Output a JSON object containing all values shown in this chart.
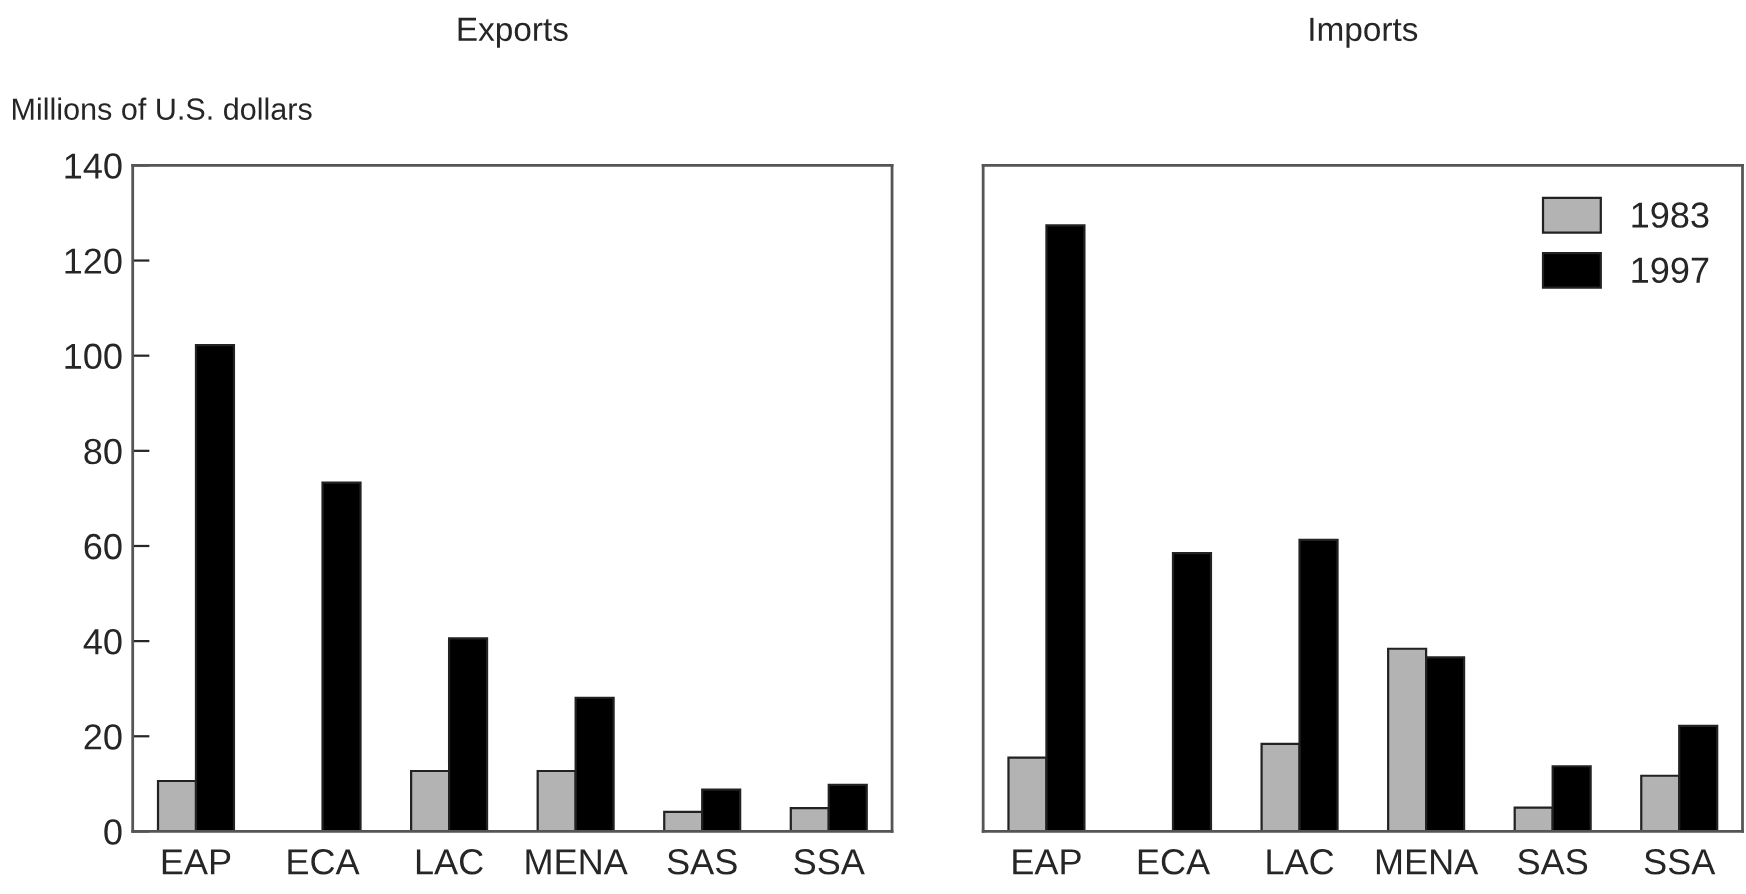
{
  "chart_data": [
    {
      "type": "bar",
      "title": "Exports",
      "ylabel": "Millions of U.S. dollars",
      "categories": [
        "EAP",
        "ECA",
        "LAC",
        "MENA",
        "SAS",
        "SSA"
      ],
      "series": [
        {
          "color": "#b3b3b3",
          "values": [
            10.6,
            null,
            12.7,
            12.7,
            4.1,
            4.9
          ]
        },
        {
          "color": "#000000",
          "values": [
            102.2,
            73.3,
            40.6,
            28.1,
            8.8,
            9.8
          ]
        }
      ],
      "ylim": [
        0,
        140
      ],
      "yticks": [
        0,
        20,
        40,
        60,
        80,
        100,
        120,
        140
      ],
      "grid": false,
      "legend": false
    },
    {
      "type": "bar",
      "title": "Imports",
      "categories": [
        "EAP",
        "ECA",
        "LAC",
        "MENA",
        "SAS",
        "SSA"
      ],
      "series": [
        {
          "name": "1983",
          "color": "#b3b3b3",
          "values": [
            15.5,
            null,
            18.4,
            38.4,
            5.0,
            11.7
          ]
        },
        {
          "name": "1997",
          "color": "#000000",
          "values": [
            127.4,
            58.5,
            61.3,
            36.6,
            13.7,
            22.2
          ]
        }
      ],
      "ylim": [
        0,
        140
      ],
      "yticks": [
        0,
        20,
        40,
        60,
        80,
        100,
        120,
        140
      ],
      "tick_labels": "x",
      "grid": false,
      "legend": "top right"
    }
  ]
}
